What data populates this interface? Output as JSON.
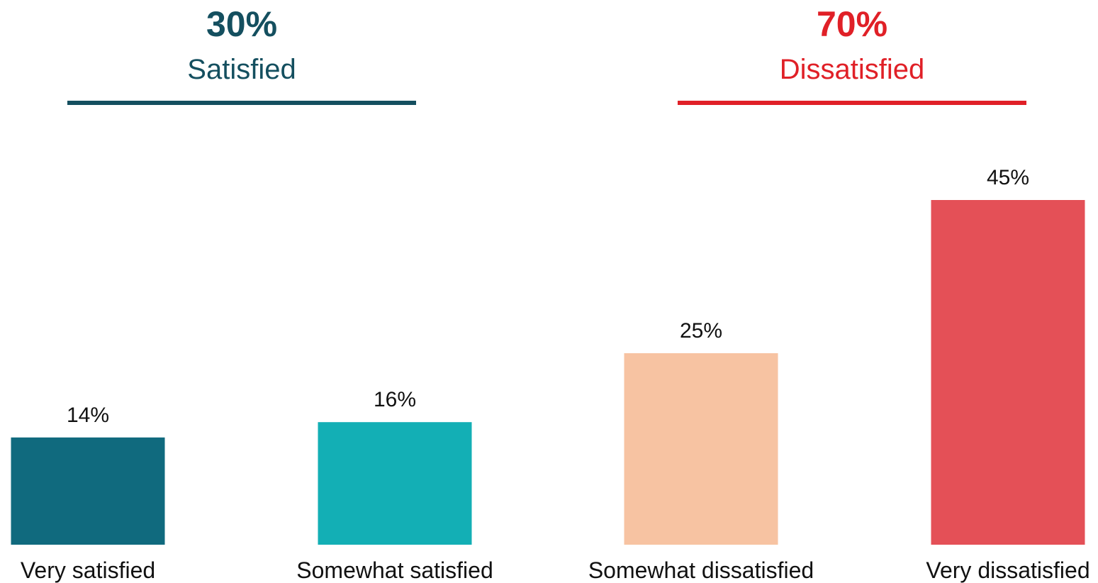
{
  "groups": {
    "left": {
      "total": "30%",
      "label": "Satisfied",
      "color": "#144f5f"
    },
    "right": {
      "total": "70%",
      "label": "Dissatisfied",
      "color": "#e02027"
    }
  },
  "chart_data": {
    "type": "bar",
    "categories": [
      "Very satisfied",
      "Somewhat satisfied",
      "Somewhat dissatisfied",
      "Very dissatisfied"
    ],
    "values": [
      14,
      16,
      25,
      45
    ],
    "value_labels": [
      "14%",
      "16%",
      "25%",
      "45%"
    ],
    "colors": [
      "#106a7e",
      "#13afb5",
      "#f7c3a2",
      "#e45057"
    ],
    "ylim": [
      0,
      100
    ],
    "grid": false,
    "legend": "none"
  }
}
